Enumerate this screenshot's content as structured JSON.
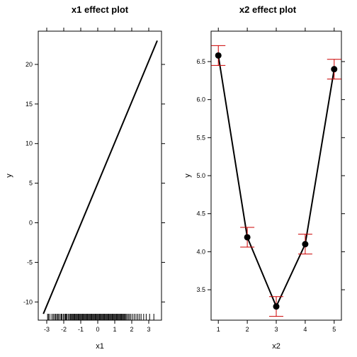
{
  "chart_data": [
    {
      "type": "line",
      "title": "x1 effect plot",
      "xlabel": "x1",
      "ylabel": "y",
      "xlim": [
        -3.5,
        3.75
      ],
      "ylim": [
        -12.3,
        24.2
      ],
      "x_ticks": [
        -3,
        -2,
        -1,
        0,
        1,
        2,
        3
      ],
      "y_ticks": [
        -10,
        -5,
        0,
        5,
        10,
        15,
        20
      ],
      "series": [
        {
          "x": [
            -3.2,
            3.5
          ],
          "y": [
            -11.5,
            23.0
          ]
        }
      ],
      "rug": [
        -2.95,
        -2.9,
        -2.82,
        -2.7,
        -2.62,
        -2.55,
        -2.48,
        -2.42,
        -2.35,
        -2.3,
        -2.22,
        -2.15,
        -2.1,
        -2.02,
        -1.95,
        -1.9,
        -1.85,
        -1.8,
        -1.72,
        -1.66,
        -1.6,
        -1.55,
        -1.5,
        -1.45,
        -1.4,
        -1.35,
        -1.3,
        -1.25,
        -1.2,
        -1.15,
        -1.1,
        -1.05,
        -1.0,
        -0.95,
        -0.9,
        -0.85,
        -0.8,
        -0.75,
        -0.7,
        -0.65,
        -0.6,
        -0.55,
        -0.5,
        -0.45,
        -0.4,
        -0.35,
        -0.3,
        -0.25,
        -0.2,
        -0.15,
        -0.1,
        -0.05,
        0.0,
        0.05,
        0.1,
        0.15,
        0.2,
        0.25,
        0.3,
        0.35,
        0.4,
        0.45,
        0.5,
        0.55,
        0.6,
        0.65,
        0.7,
        0.75,
        0.8,
        0.85,
        0.9,
        0.95,
        1.0,
        1.05,
        1.1,
        1.15,
        1.2,
        1.25,
        1.3,
        1.35,
        1.4,
        1.45,
        1.5,
        1.55,
        1.6,
        1.66,
        1.72,
        1.8,
        1.87,
        1.95,
        2.05,
        2.15,
        2.25,
        2.35,
        2.45,
        2.55,
        2.7,
        2.85,
        3.05,
        3.3
      ]
    },
    {
      "type": "line",
      "title": "x2 effect plot",
      "xlabel": "x2",
      "ylabel": "y",
      "xlim": [
        0.75,
        5.25
      ],
      "ylim": [
        3.1,
        6.9
      ],
      "x_ticks": [
        1,
        2,
        3,
        4,
        5
      ],
      "y_ticks": [
        3.5,
        4.0,
        4.5,
        5.0,
        5.5,
        6.0,
        6.5
      ],
      "series": [
        {
          "x": [
            1,
            2,
            3,
            4,
            5
          ],
          "y": [
            6.58,
            4.19,
            3.28,
            4.1,
            6.4
          ],
          "lower": [
            6.45,
            4.06,
            3.15,
            3.97,
            6.27
          ],
          "upper": [
            6.71,
            4.32,
            3.41,
            4.23,
            6.53
          ]
        }
      ],
      "error_bar_color": "#cc0000"
    }
  ]
}
